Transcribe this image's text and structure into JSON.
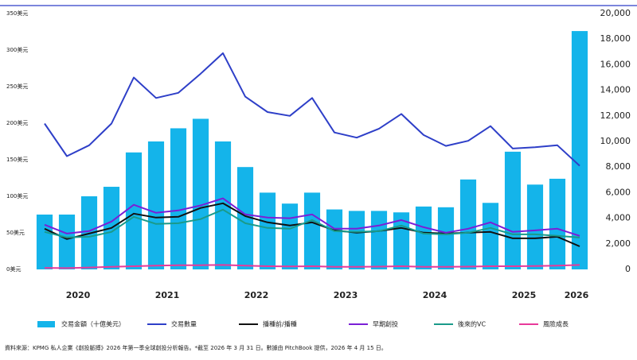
{
  "chart_data": {
    "type": "bar",
    "categories": [
      null,
      "2020",
      null,
      null,
      null,
      "2021",
      null,
      null,
      null,
      "2022",
      null,
      null,
      null,
      "2023",
      null,
      null,
      null,
      "2024",
      null,
      null,
      null,
      "2025",
      null,
      null,
      "2026"
    ],
    "series": [
      {
        "name": "交易金額（十億美元）",
        "type": "bar",
        "color": "#14b4ea",
        "values": [
          75,
          75,
          100,
          113,
          160,
          175,
          193,
          206,
          175,
          140,
          105,
          90,
          105,
          82,
          80,
          80,
          78,
          86,
          85,
          123,
          91,
          161,
          116,
          124,
          326
        ]
      },
      {
        "name": "交易數量",
        "type": "line",
        "axis": "y2",
        "color": "#2e3fc8",
        "values": [
          11400,
          8850,
          9700,
          11400,
          15000,
          13400,
          13800,
          15300,
          16900,
          13500,
          12300,
          12000,
          13400,
          10700,
          10300,
          11000,
          12150,
          10500,
          9650,
          10050,
          11200,
          9450,
          9550,
          9700,
          8100
        ]
      },
      {
        "name": "播種前/播種",
        "type": "line",
        "axis": "y2",
        "color": "#111111",
        "values": [
          3180,
          2370,
          2800,
          3240,
          4360,
          4050,
          4110,
          4800,
          5170,
          4170,
          3680,
          3430,
          3680,
          3050,
          2870,
          3000,
          3240,
          2870,
          2800,
          2870,
          2930,
          2430,
          2430,
          2550,
          1800
        ]
      },
      {
        "name": "早期創投",
        "type": "line",
        "axis": "y2",
        "color": "#7a1fd6",
        "values": [
          3490,
          2800,
          3000,
          3740,
          5050,
          4420,
          4610,
          5000,
          5550,
          4300,
          4050,
          4000,
          4300,
          3180,
          3180,
          3430,
          3860,
          3300,
          2870,
          3180,
          3680,
          2930,
          3050,
          3180,
          2620
        ]
      },
      {
        "name": "後來的VC",
        "type": "line",
        "axis": "y2",
        "color": "#1a9a8a",
        "values": [
          2930,
          2500,
          2550,
          2930,
          4110,
          3550,
          3610,
          3930,
          4670,
          3610,
          3240,
          3180,
          3860,
          2990,
          2930,
          2990,
          3430,
          2800,
          2740,
          2870,
          3240,
          2740,
          2740,
          2620,
          2490
        ]
      },
      {
        "name": "風險成長",
        "type": "line",
        "axis": "y2",
        "color": "#e8399a",
        "values": [
          120,
          100,
          150,
          200,
          250,
          300,
          320,
          330,
          350,
          300,
          250,
          230,
          250,
          200,
          200,
          220,
          250,
          200,
          200,
          220,
          250,
          250,
          260,
          300,
          350
        ]
      }
    ],
    "ylim": [
      0,
      350
    ],
    "yticks": [
      {
        "value": 0,
        "label": "0美元"
      },
      {
        "value": 50,
        "label": "50美元"
      },
      {
        "value": 100,
        "label": "100美元"
      },
      {
        "value": 150,
        "label": "150美元"
      },
      {
        "value": 200,
        "label": "200美元"
      },
      {
        "value": 250,
        "label": "250美元"
      },
      {
        "value": 300,
        "label": "300美元"
      },
      {
        "value": 350,
        "label": "350美元"
      }
    ],
    "y2lim": [
      0,
      20000
    ],
    "y2ticks": [
      0,
      {
        "value": 2000,
        "label": "2,000"
      },
      {
        "value": 4000,
        "label": "4,000"
      },
      {
        "value": 6000,
        "label": "6,000"
      },
      {
        "value": 8000,
        "label": "8,000"
      },
      {
        "value": 10000,
        "label": "10,000"
      },
      {
        "value": 12000,
        "label": "12,000"
      },
      {
        "value": 14000,
        "label": "14,000"
      },
      {
        "value": 16000,
        "label": "16,000"
      },
      {
        "value": 18000,
        "label": "18,000"
      },
      {
        "value": 20000,
        "label": "20,000"
      }
    ],
    "source": "資料來源：KPMG 私人企業《創投脈搏》2026 年第一季全球創投分析報告。*截至 2026 年 3 月 31 日。數據由 PitchBook 提供，2026 年 4 月 15 日。"
  }
}
